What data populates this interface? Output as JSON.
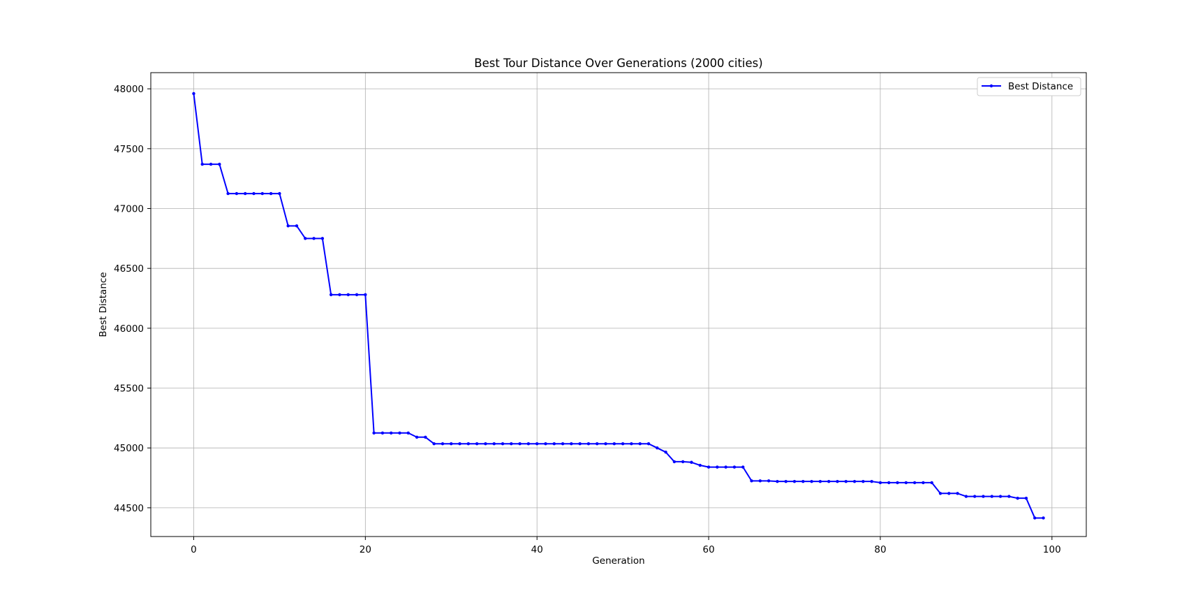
{
  "chart_data": {
    "type": "line",
    "title": "Best Tour Distance Over Generations (2000 cities)",
    "xlabel": "Generation",
    "ylabel": "Best Distance",
    "xlim": [
      -5,
      104
    ],
    "ylim": [
      44260,
      48135
    ],
    "xticks": [
      0,
      20,
      40,
      60,
      80,
      100
    ],
    "yticks": [
      44500,
      45000,
      45500,
      46000,
      46500,
      47000,
      47500,
      48000
    ],
    "grid": true,
    "legend": "top-right",
    "series": [
      {
        "name": "Best Distance",
        "color": "#0000ff",
        "marker": "dot",
        "x": [
          0,
          1,
          2,
          3,
          4,
          5,
          6,
          7,
          8,
          9,
          10,
          11,
          12,
          13,
          14,
          15,
          16,
          17,
          18,
          19,
          20,
          21,
          22,
          23,
          24,
          25,
          26,
          27,
          28,
          29,
          30,
          31,
          32,
          33,
          34,
          35,
          36,
          37,
          38,
          39,
          40,
          41,
          42,
          43,
          44,
          45,
          46,
          47,
          48,
          49,
          50,
          51,
          52,
          53,
          54,
          55,
          56,
          57,
          58,
          59,
          60,
          61,
          62,
          63,
          64,
          65,
          66,
          67,
          68,
          69,
          70,
          71,
          72,
          73,
          74,
          75,
          76,
          77,
          78,
          79,
          80,
          81,
          82,
          83,
          84,
          85,
          86,
          87,
          88,
          89,
          90,
          91,
          92,
          93,
          94,
          95,
          96,
          97,
          98,
          99
        ],
        "y": [
          47960,
          47370,
          47370,
          47370,
          47125,
          47125,
          47125,
          47125,
          47125,
          47125,
          47125,
          46855,
          46855,
          46750,
          46750,
          46750,
          46280,
          46280,
          46280,
          46280,
          46280,
          45125,
          45125,
          45125,
          45125,
          45125,
          45090,
          45090,
          45035,
          45035,
          45035,
          45035,
          45035,
          45035,
          45035,
          45035,
          45035,
          45035,
          45035,
          45035,
          45035,
          45035,
          45035,
          45035,
          45035,
          45035,
          45035,
          45035,
          45035,
          45035,
          45035,
          45035,
          45035,
          45035,
          45000,
          44965,
          44885,
          44885,
          44880,
          44855,
          44840,
          44840,
          44840,
          44840,
          44840,
          44725,
          44725,
          44725,
          44720,
          44720,
          44720,
          44720,
          44720,
          44720,
          44720,
          44720,
          44720,
          44720,
          44720,
          44720,
          44710,
          44710,
          44710,
          44710,
          44710,
          44710,
          44710,
          44620,
          44620,
          44620,
          44595,
          44595,
          44595,
          44595,
          44595,
          44595,
          44580,
          44580,
          44415,
          44415
        ]
      }
    ]
  }
}
